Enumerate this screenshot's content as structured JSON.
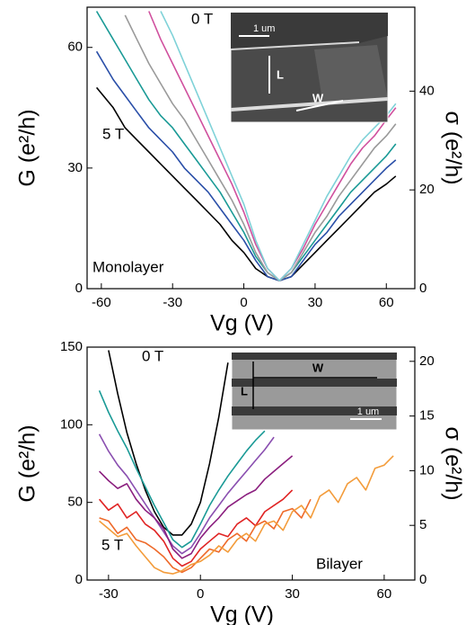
{
  "chart_data": [
    {
      "type": "line",
      "x": [
        -62,
        -55,
        -50,
        -45,
        -40,
        -35,
        -30,
        -25,
        -20,
        -15,
        -10,
        -5,
        0,
        5,
        10,
        15,
        20,
        25,
        30,
        35,
        40,
        45,
        50,
        55,
        60,
        64
      ],
      "series": [
        {
          "color": "#000000",
          "values": [
            50,
            45,
            40,
            37,
            34,
            31,
            28,
            25,
            22,
            19,
            16,
            12,
            9,
            5,
            3,
            2,
            3,
            6,
            9,
            12,
            15,
            18,
            21,
            24,
            26,
            28
          ]
        },
        {
          "color": "#2a4fa8",
          "values": [
            59,
            52,
            48,
            44,
            40,
            37,
            34,
            30,
            27,
            24,
            20,
            16,
            12,
            7,
            3,
            2,
            3,
            7,
            11,
            14,
            18,
            21,
            24,
            27,
            30,
            32
          ]
        },
        {
          "color": "#1a9a96",
          "values": [
            69,
            62,
            57,
            52,
            47,
            43,
            40,
            36,
            32,
            28,
            24,
            19,
            14,
            8,
            4,
            2,
            4,
            8,
            12,
            16,
            20,
            24,
            27,
            30,
            33,
            36
          ]
        },
        {
          "color": "#9a9a9a",
          "values": [
            null,
            null,
            68,
            62,
            56,
            51,
            46,
            42,
            37,
            32,
            27,
            22,
            16,
            9,
            4,
            2,
            4,
            9,
            14,
            18,
            23,
            27,
            31,
            35,
            38,
            41
          ]
        },
        {
          "color": "#d0509e",
          "values": [
            null,
            null,
            null,
            null,
            69,
            62,
            56,
            50,
            44,
            38,
            32,
            26,
            19,
            11,
            5,
            2,
            5,
            10,
            16,
            21,
            26,
            31,
            35,
            38,
            42,
            45
          ]
        },
        {
          "color": "#7fd2d8",
          "values": [
            null,
            null,
            null,
            null,
            null,
            69,
            63,
            56,
            49,
            42,
            35,
            28,
            21,
            12,
            5,
            2,
            5,
            11,
            17,
            23,
            28,
            33,
            37,
            40,
            43,
            46
          ]
        }
      ],
      "xlim": [
        -66,
        72
      ],
      "ylim": [
        0,
        70
      ],
      "y2lim": [
        0,
        57
      ],
      "xticks": [
        -60,
        -30,
        0,
        30,
        60
      ],
      "yticks": [
        0,
        30,
        60
      ],
      "y2ticks": [
        0,
        20,
        40
      ],
      "xlabel": "Vg (V)",
      "ylabel": "G (e²/h)",
      "y2label": "σ (e²/h)",
      "annotations": [
        "0 T",
        "5 T",
        "Monolayer"
      ],
      "inset_labels": [
        "1 um",
        "L",
        "W"
      ]
    },
    {
      "type": "line",
      "x": [
        -33,
        -30,
        -27,
        -24,
        -21,
        -18,
        -15,
        -12,
        -9,
        -6,
        -3,
        0,
        3,
        6,
        9,
        12,
        15,
        18,
        21,
        24,
        27,
        30,
        33,
        36,
        39,
        42,
        45,
        48,
        51,
        54,
        57,
        60,
        63
      ],
      "series": [
        {
          "color": "#000000",
          "values": [
            null,
            148,
            120,
            95,
            75,
            58,
            44,
            34,
            29,
            29,
            36,
            50,
            75,
            105,
            140,
            null,
            null,
            null,
            null,
            null,
            null,
            null,
            null,
            null,
            null,
            null,
            null,
            null,
            null,
            null,
            null,
            null,
            null
          ]
        },
        {
          "color": "#1a9a96",
          "values": [
            122,
            108,
            96,
            85,
            72,
            60,
            48,
            37,
            26,
            21,
            25,
            36,
            48,
            58,
            67,
            75,
            83,
            90,
            96,
            null,
            null,
            null,
            null,
            null,
            null,
            null,
            null,
            null,
            null,
            null,
            null,
            null,
            null
          ]
        },
        {
          "color": "#8a4fb0",
          "values": [
            94,
            83,
            74,
            67,
            58,
            49,
            40,
            31,
            22,
            17,
            21,
            30,
            40,
            48,
            56,
            63,
            70,
            77,
            84,
            92,
            null,
            null,
            null,
            null,
            null,
            null,
            null,
            null,
            null,
            null,
            null,
            null,
            null
          ]
        },
        {
          "color": "#8b1f7f",
          "values": [
            70,
            64,
            59,
            62,
            52,
            45,
            40,
            33,
            20,
            14,
            17,
            27,
            34,
            40,
            47,
            51,
            55,
            58,
            65,
            70,
            75,
            80,
            null,
            null,
            null,
            null,
            null,
            null,
            null,
            null,
            null,
            null,
            null
          ]
        },
        {
          "color": "#e02424",
          "values": [
            52,
            45,
            49,
            40,
            44,
            36,
            32,
            25,
            14,
            9,
            12,
            20,
            25,
            30,
            28,
            36,
            40,
            35,
            44,
            48,
            52,
            58,
            null,
            null,
            null,
            null,
            null,
            null,
            null,
            null,
            null,
            null,
            null
          ]
        },
        {
          "color": "#ee6a2a",
          "values": [
            40,
            38,
            30,
            34,
            26,
            24,
            20,
            15,
            8,
            5,
            8,
            14,
            20,
            18,
            26,
            30,
            25,
            35,
            38,
            33,
            44,
            46,
            40,
            52,
            null,
            null,
            null,
            null,
            null,
            null,
            null,
            null,
            null
          ]
        },
        {
          "color": "#f39c3b",
          "values": [
            38,
            33,
            28,
            30,
            22,
            15,
            8,
            5,
            4,
            6,
            10,
            12,
            16,
            22,
            18,
            26,
            30,
            25,
            36,
            38,
            32,
            44,
            48,
            40,
            54,
            58,
            50,
            62,
            66,
            58,
            72,
            74,
            80
          ]
        }
      ],
      "xlim": [
        -37,
        70
      ],
      "ylim": [
        0,
        150
      ],
      "y2lim": [
        0,
        21.3
      ],
      "xticks": [
        -30,
        0,
        30,
        60
      ],
      "yticks": [
        0,
        50,
        100,
        150
      ],
      "y2ticks": [
        0,
        5,
        10,
        15,
        20
      ],
      "xlabel": "Vg (V)",
      "ylabel": "G (e²/h)",
      "y2label": "σ (e²/h)",
      "annotations": [
        "0 T",
        "5 T",
        "Bilayer"
      ],
      "inset_labels": [
        "1 um",
        "L",
        "W"
      ]
    }
  ]
}
